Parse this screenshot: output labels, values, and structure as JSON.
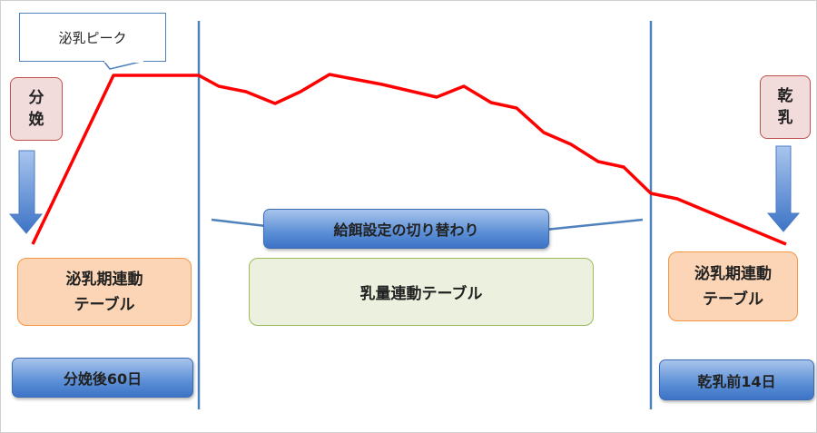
{
  "labels": {
    "lactation_peak": "泌乳ピーク",
    "calving": "分娩",
    "dry_off": "乾乳",
    "left_table": "泌乳期連動テーブル",
    "right_table": "泌乳期連動テーブル",
    "middle_table": "乳量連動テーブル",
    "feed_switch": "給餌設定の切り替わり",
    "after_calving": "分娩後60日",
    "before_dry": "乾乳前14日"
  },
  "colors": {
    "curve": "#ff0000",
    "divider": "#4f81bd"
  }
}
